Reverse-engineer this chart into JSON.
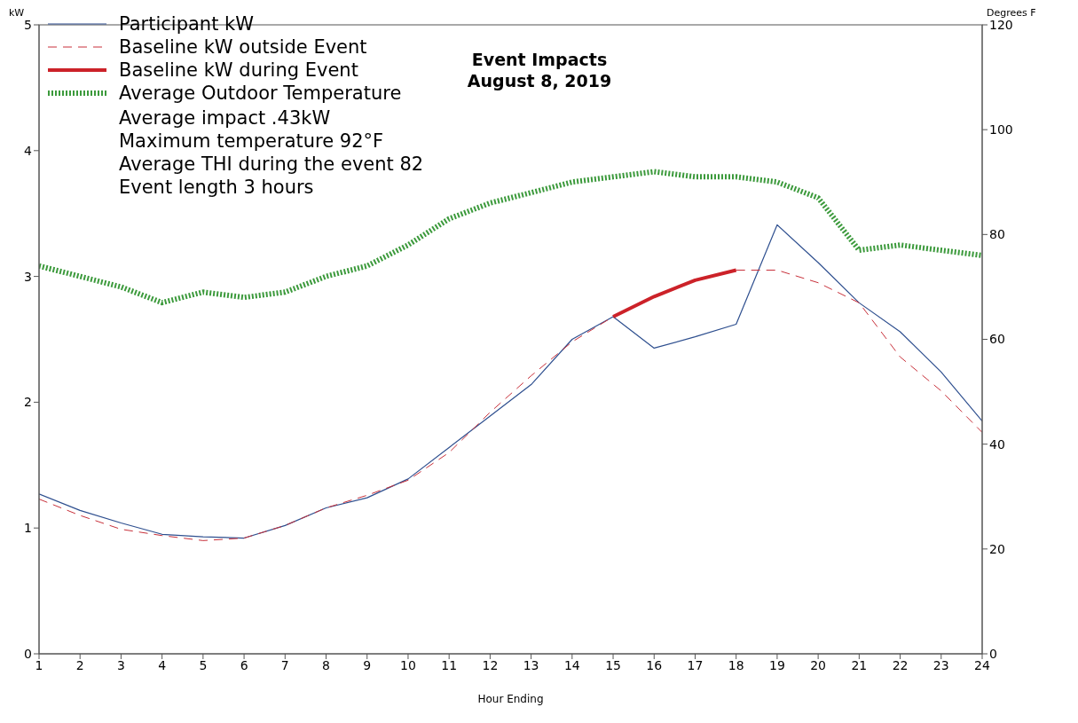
{
  "chart_data": {
    "type": "line",
    "title": "Event Impacts",
    "subtitle": "August 8, 2019",
    "xlabel": "Hour Ending",
    "ylabel": "kW",
    "y2label": "Degrees F",
    "x": [
      1,
      2,
      3,
      4,
      5,
      6,
      7,
      8,
      9,
      10,
      11,
      12,
      13,
      14,
      15,
      16,
      17,
      18,
      19,
      20,
      21,
      22,
      23,
      24
    ],
    "series": [
      {
        "name": "Participant kW",
        "color": "#2e4f8f",
        "line_style": "solid",
        "values": [
          1.27,
          1.14,
          1.04,
          0.95,
          0.93,
          0.92,
          1.02,
          1.16,
          1.24,
          1.39,
          1.64,
          1.89,
          2.14,
          2.5,
          2.68,
          2.43,
          2.52,
          2.62,
          3.41,
          3.11,
          2.79,
          2.56,
          2.24,
          1.85
        ]
      },
      {
        "name": "Baseline kW outside Event",
        "color": "#c8303a",
        "line_style": "dashed",
        "values": [
          1.23,
          1.1,
          0.99,
          0.94,
          0.9,
          0.92,
          1.02,
          1.16,
          1.26,
          1.38,
          1.6,
          1.92,
          2.21,
          2.48,
          2.68,
          null,
          null,
          3.05,
          3.05,
          2.95,
          2.79,
          2.36,
          2.09,
          1.76
        ]
      },
      {
        "name": "Baseline kW during Event",
        "color": "#cc2229",
        "line_style": "solid",
        "values": [
          null,
          null,
          null,
          null,
          null,
          null,
          null,
          null,
          null,
          null,
          null,
          null,
          null,
          null,
          2.68,
          2.84,
          2.97,
          3.05,
          null,
          null,
          null,
          null,
          null,
          null
        ]
      },
      {
        "name": "Average Outdoor Temperature",
        "color": "#3c9a3c",
        "line_style": "dotted",
        "axis": "y2",
        "values": [
          74,
          72,
          70,
          67,
          69,
          68,
          69,
          72,
          74,
          78,
          83,
          86,
          88,
          90,
          91,
          92,
          91,
          91,
          90,
          87,
          77,
          78,
          77,
          76
        ]
      }
    ],
    "xlim": [
      1,
      24
    ],
    "xticks": [
      1,
      2,
      3,
      4,
      5,
      6,
      7,
      8,
      9,
      10,
      11,
      12,
      13,
      14,
      15,
      16,
      17,
      18,
      19,
      20,
      21,
      22,
      23,
      24
    ],
    "ylim": [
      0,
      5
    ],
    "yticks": [
      0,
      1,
      2,
      3,
      4,
      5
    ],
    "y2lim": [
      0,
      120
    ],
    "y2ticks": [
      0,
      20,
      40,
      60,
      80,
      100,
      120
    ],
    "grid": false,
    "legend": "top left",
    "marker": "none",
    "annotations": [
      "Average impact .43kW",
      "Maximum temperature 92°F",
      "Average THI during the event 82",
      "Event length 3 hours"
    ]
  }
}
